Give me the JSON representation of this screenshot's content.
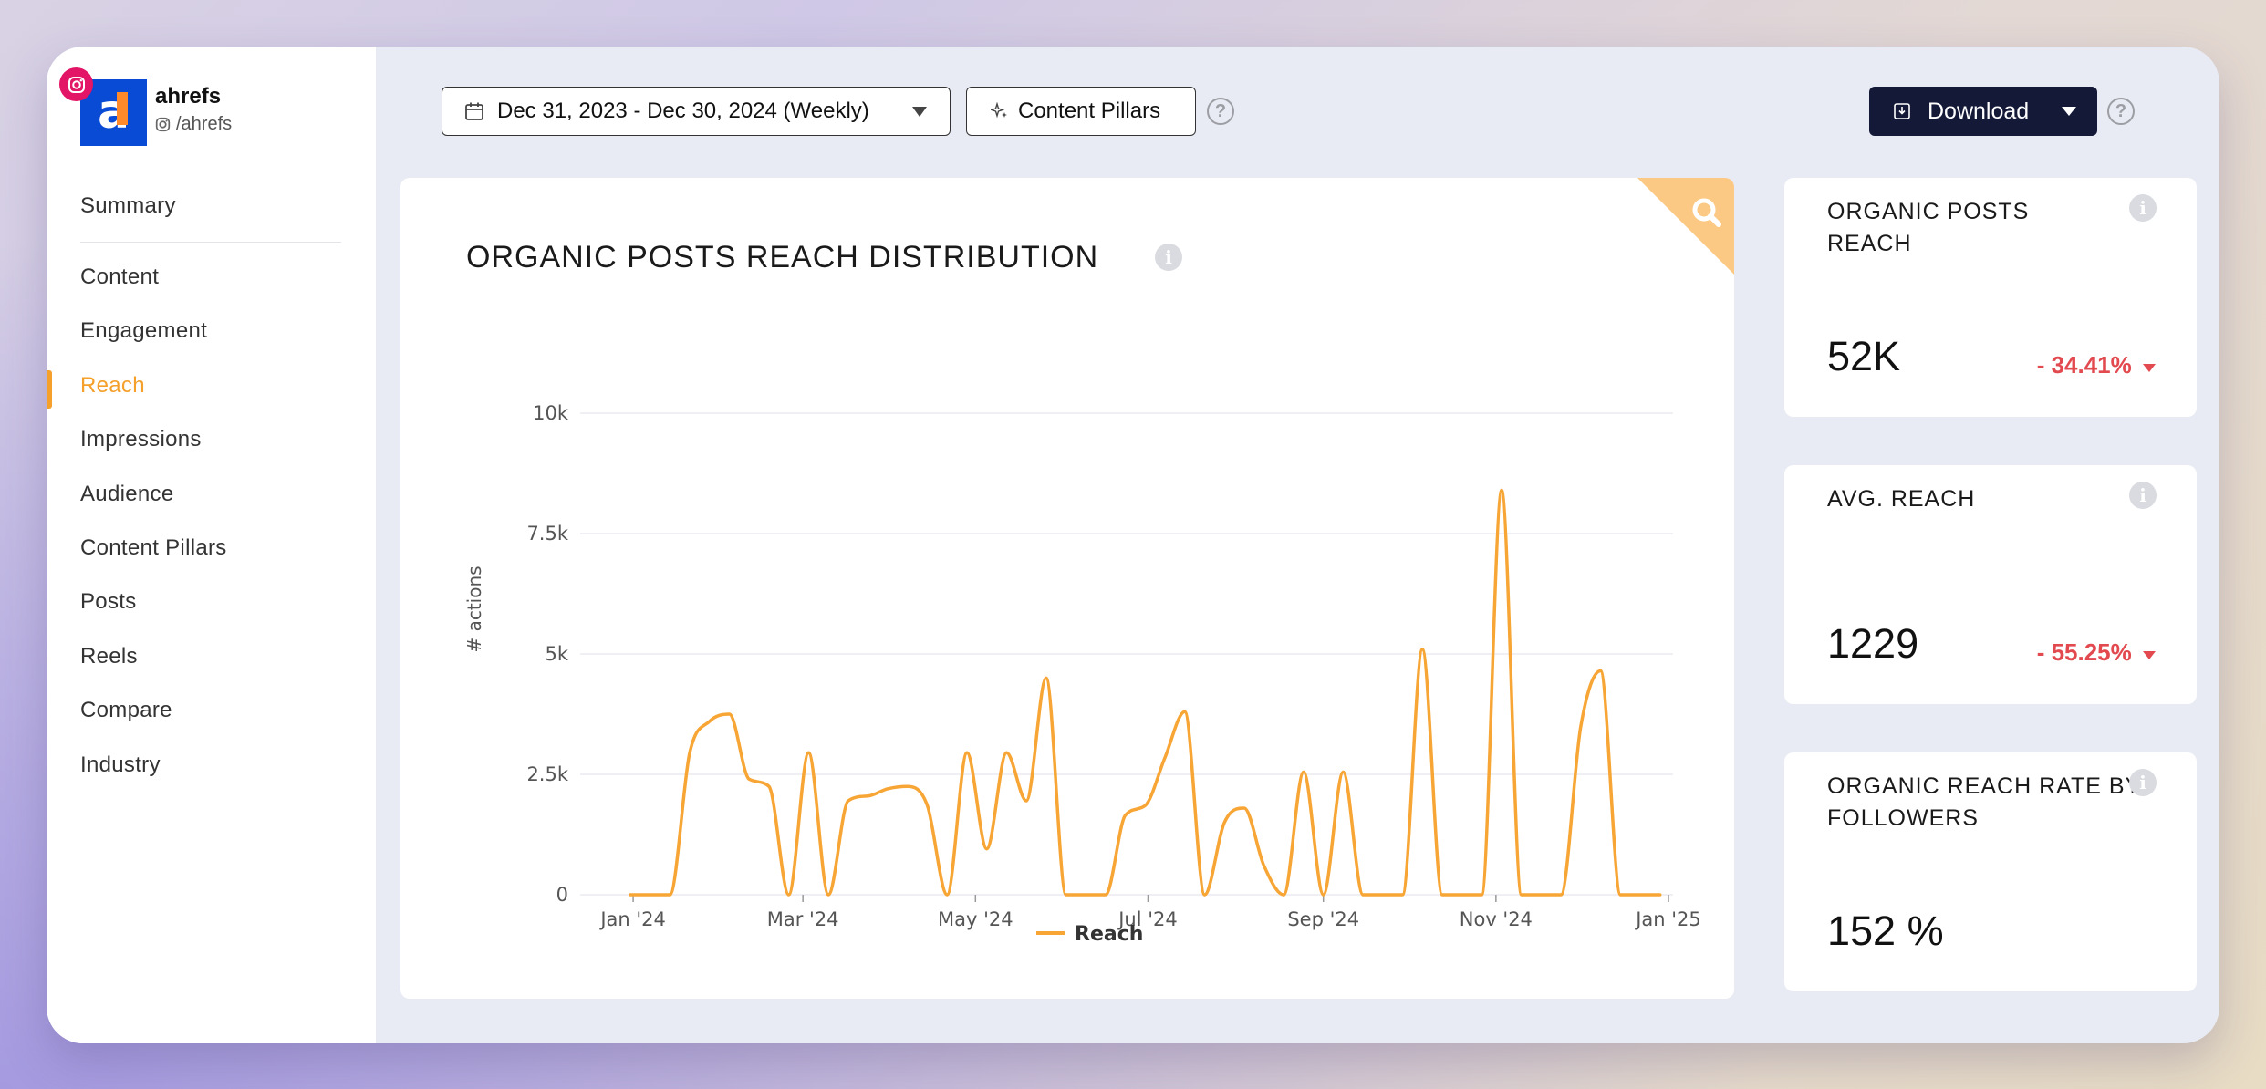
{
  "account": {
    "name": "ahrefs",
    "handle": "/ahrefs",
    "logo_letter": "a",
    "platform_icon": "instagram-icon"
  },
  "sidebar": {
    "items": [
      {
        "label": "Summary"
      },
      {
        "label": "Content"
      },
      {
        "label": "Engagement"
      },
      {
        "label": "Reach",
        "active": true
      },
      {
        "label": "Impressions"
      },
      {
        "label": "Audience"
      },
      {
        "label": "Content Pillars"
      },
      {
        "label": "Posts"
      },
      {
        "label": "Reels"
      },
      {
        "label": "Compare"
      },
      {
        "label": "Industry"
      }
    ]
  },
  "toolbar": {
    "date_range": "Dec 31, 2023 - Dec 30, 2024 (Weekly)",
    "content_pillars_label": "Content Pillars",
    "download_label": "Download",
    "help_symbol": "?"
  },
  "chart_card": {
    "title": "ORGANIC POSTS REACH DISTRIBUTION",
    "info_symbol": "i"
  },
  "chart_data": {
    "type": "line",
    "title": "ORGANIC POSTS REACH DISTRIBUTION",
    "ylabel": "# actions",
    "xlabel": "",
    "ylim": [
      0,
      10000
    ],
    "y_ticks": [
      {
        "v": 0,
        "label": "0"
      },
      {
        "v": 2500,
        "label": "2.5k"
      },
      {
        "v": 5000,
        "label": "5k"
      },
      {
        "v": 7500,
        "label": "7.5k"
      },
      {
        "v": 10000,
        "label": "10k"
      }
    ],
    "x_ticks": [
      {
        "date": "2024-01-01",
        "label": "Jan '24"
      },
      {
        "date": "2024-03-01",
        "label": "Mar '24"
      },
      {
        "date": "2024-05-01",
        "label": "May '24"
      },
      {
        "date": "2024-07-01",
        "label": "Jul '24"
      },
      {
        "date": "2024-09-01",
        "label": "Sep '24"
      },
      {
        "date": "2024-11-01",
        "label": "Nov '24"
      },
      {
        "date": "2025-01-01",
        "label": "Jan '25"
      }
    ],
    "legend": "bottom",
    "grid": true,
    "series": [
      {
        "name": "Reach",
        "color": "#f7a534",
        "points": [
          {
            "x": "2023-12-31",
            "y": 0
          },
          {
            "x": "2024-01-07",
            "y": 0
          },
          {
            "x": "2024-01-14",
            "y": 0
          },
          {
            "x": "2024-01-21",
            "y": 2950
          },
          {
            "x": "2024-01-28",
            "y": 3600
          },
          {
            "x": "2024-02-04",
            "y": 3750
          },
          {
            "x": "2024-02-11",
            "y": 2400
          },
          {
            "x": "2024-02-18",
            "y": 2250
          },
          {
            "x": "2024-02-25",
            "y": 0
          },
          {
            "x": "2024-03-03",
            "y": 2950
          },
          {
            "x": "2024-03-10",
            "y": 0
          },
          {
            "x": "2024-03-17",
            "y": 1950
          },
          {
            "x": "2024-03-24",
            "y": 2050
          },
          {
            "x": "2024-03-31",
            "y": 2200
          },
          {
            "x": "2024-04-07",
            "y": 2250
          },
          {
            "x": "2024-04-14",
            "y": 1850
          },
          {
            "x": "2024-04-21",
            "y": 0
          },
          {
            "x": "2024-04-28",
            "y": 2950
          },
          {
            "x": "2024-05-05",
            "y": 950
          },
          {
            "x": "2024-05-12",
            "y": 2950
          },
          {
            "x": "2024-05-19",
            "y": 1950
          },
          {
            "x": "2024-05-26",
            "y": 4500
          },
          {
            "x": "2024-06-02",
            "y": 0
          },
          {
            "x": "2024-06-09",
            "y": 0
          },
          {
            "x": "2024-06-16",
            "y": 0
          },
          {
            "x": "2024-06-23",
            "y": 1650
          },
          {
            "x": "2024-06-30",
            "y": 1850
          },
          {
            "x": "2024-07-07",
            "y": 2850
          },
          {
            "x": "2024-07-14",
            "y": 3800
          },
          {
            "x": "2024-07-21",
            "y": 0
          },
          {
            "x": "2024-07-28",
            "y": 1500
          },
          {
            "x": "2024-08-04",
            "y": 1800
          },
          {
            "x": "2024-08-11",
            "y": 600
          },
          {
            "x": "2024-08-18",
            "y": 0
          },
          {
            "x": "2024-08-25",
            "y": 2550
          },
          {
            "x": "2024-09-01",
            "y": 0
          },
          {
            "x": "2024-09-08",
            "y": 2550
          },
          {
            "x": "2024-09-15",
            "y": 0
          },
          {
            "x": "2024-09-22",
            "y": 0
          },
          {
            "x": "2024-09-29",
            "y": 0
          },
          {
            "x": "2024-10-06",
            "y": 5100
          },
          {
            "x": "2024-10-13",
            "y": 0
          },
          {
            "x": "2024-10-20",
            "y": 0
          },
          {
            "x": "2024-10-27",
            "y": 0
          },
          {
            "x": "2024-11-03",
            "y": 8400
          },
          {
            "x": "2024-11-10",
            "y": 0
          },
          {
            "x": "2024-11-17",
            "y": 0
          },
          {
            "x": "2024-11-24",
            "y": 0
          },
          {
            "x": "2024-12-01",
            "y": 3500
          },
          {
            "x": "2024-12-08",
            "y": 4650
          },
          {
            "x": "2024-12-15",
            "y": 0
          },
          {
            "x": "2024-12-22",
            "y": 0
          },
          {
            "x": "2024-12-29",
            "y": 0
          }
        ]
      }
    ]
  },
  "kpis": [
    {
      "title": "ORGANIC POSTS REACH",
      "value": "52K",
      "delta": "- 34.41%"
    },
    {
      "title": "AVG. REACH",
      "value": "1229",
      "delta": "- 55.25%"
    },
    {
      "title": "ORGANIC REACH RATE BY FOLLOWERS",
      "value": "152 %",
      "delta": ""
    }
  ],
  "colors": {
    "accent": "#f4a02b",
    "download_bg": "#141938",
    "negative": "#e24a4f",
    "instagram": "#e21566",
    "brand_blue": "#0a4bd6"
  }
}
